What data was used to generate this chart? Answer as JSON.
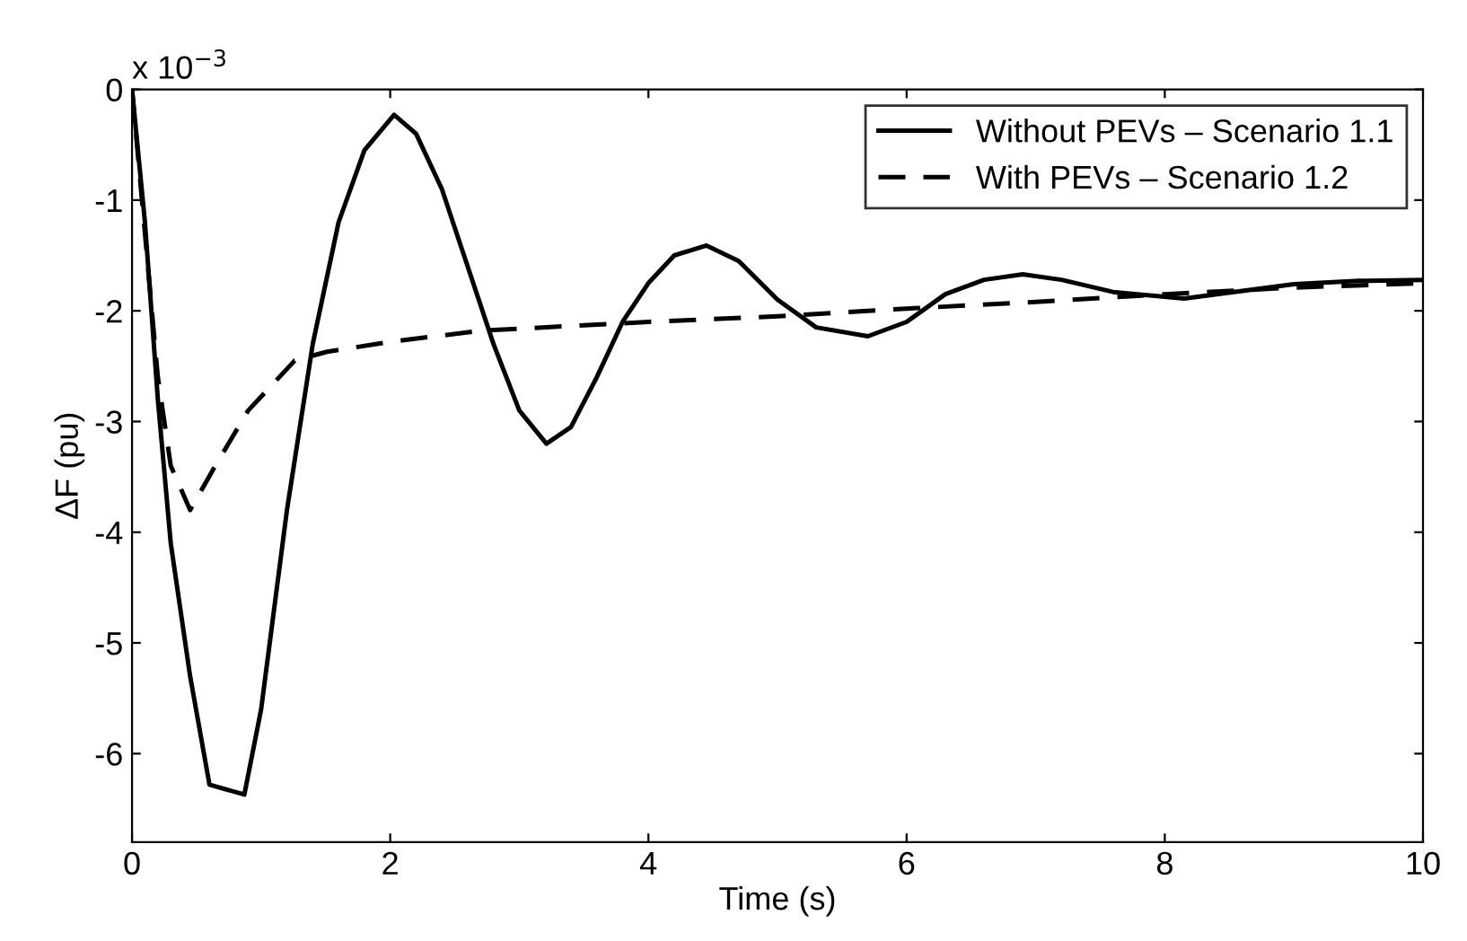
{
  "chart_data": {
    "type": "line",
    "xlabel": "Time (s)",
    "ylabel": "ΔF (pu)",
    "annotations": [
      "x 10$^{−3}$"
    ],
    "xlim": [
      0,
      10
    ],
    "xticks": [
      0,
      2,
      4,
      6,
      8,
      10
    ],
    "ylim": [
      -6.8,
      0
    ],
    "yticks": [
      -6,
      -5,
      -4,
      -3,
      -2,
      -1,
      0
    ],
    "grid": false,
    "legend": "top right",
    "marker": "none",
    "series": [
      {
        "name": "Without PEVs – Scenario 1.1",
        "color": "#000000",
        "line_style": "solid",
        "x": [
          0,
          0.1,
          0.2,
          0.3,
          0.45,
          0.6,
          0.87,
          1.0,
          1.2,
          1.4,
          1.6,
          1.8,
          2.03,
          2.2,
          2.4,
          2.6,
          2.8,
          3.0,
          3.21,
          3.4,
          3.6,
          3.8,
          4.0,
          4.2,
          4.45,
          4.7,
          5.0,
          5.3,
          5.7,
          6.0,
          6.3,
          6.6,
          6.9,
          7.2,
          7.6,
          8.15,
          8.6,
          9.0,
          9.5,
          10
        ],
        "values": [
          0,
          -1.2,
          -2.8,
          -4.1,
          -5.3,
          -6.28,
          -6.37,
          -5.6,
          -3.8,
          -2.3,
          -1.2,
          -0.55,
          -0.23,
          -0.4,
          -0.9,
          -1.6,
          -2.3,
          -2.9,
          -3.2,
          -3.05,
          -2.6,
          -2.1,
          -1.75,
          -1.5,
          -1.41,
          -1.55,
          -1.9,
          -2.15,
          -2.23,
          -2.1,
          -1.85,
          -1.72,
          -1.67,
          -1.72,
          -1.83,
          -1.89,
          -1.82,
          -1.76,
          -1.73,
          -1.72
        ]
      },
      {
        "name": "With PEVs – Scenario 1.2",
        "color": "#000000",
        "line_style": "dashed",
        "x": [
          0,
          0.1,
          0.2,
          0.3,
          0.45,
          0.63,
          0.9,
          1.26,
          1.51,
          2.0,
          2.7,
          4,
          5,
          6,
          7,
          8,
          9,
          10
        ],
        "values": [
          0,
          -1.3,
          -2.6,
          -3.4,
          -3.8,
          -3.43,
          -2.9,
          -2.45,
          -2.37,
          -2.28,
          -2.18,
          -2.1,
          -2.05,
          -1.98,
          -1.92,
          -1.85,
          -1.79,
          -1.75
        ]
      }
    ]
  }
}
